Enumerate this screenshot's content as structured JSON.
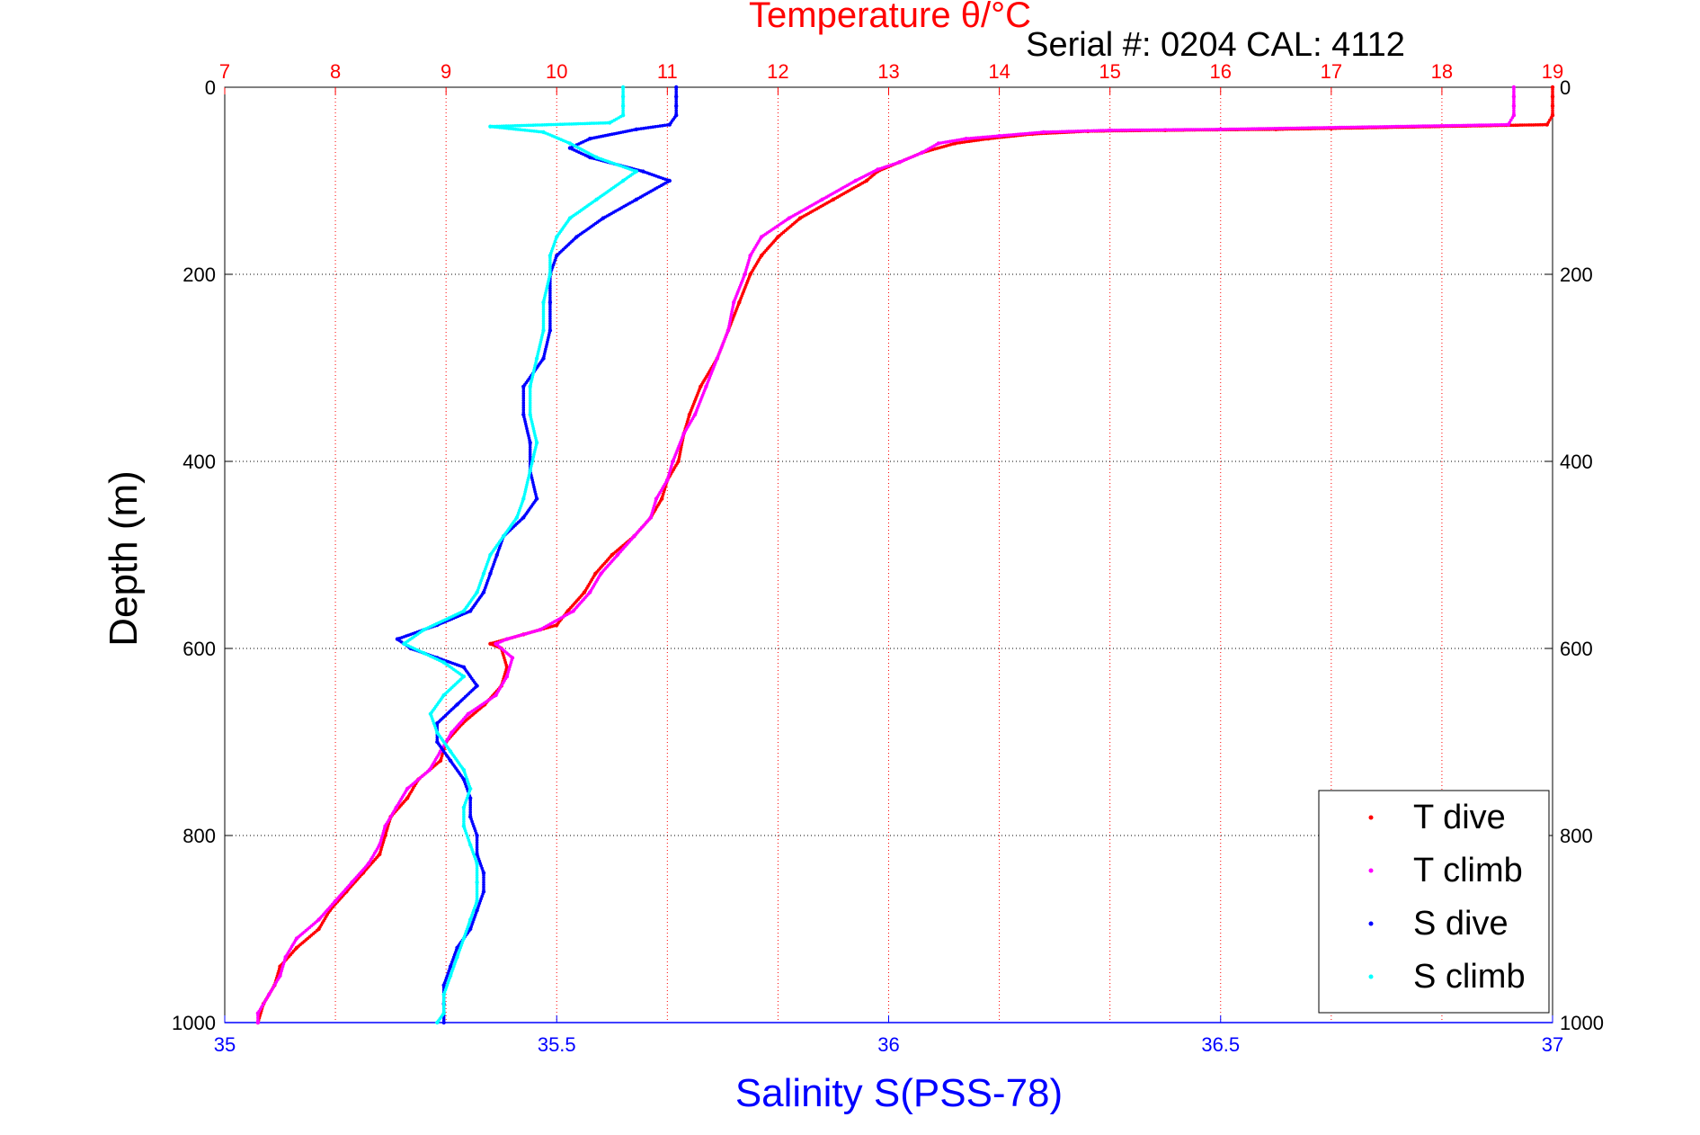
{
  "chart_data": {
    "type": "scatter",
    "serial_text": "Serial #: 0204  CAL: 4112",
    "axes": {
      "temperature": {
        "label": "Temperature θ/°C",
        "range": [
          7,
          19
        ],
        "ticks": [
          "7",
          "8",
          "9",
          "10",
          "11",
          "12",
          "13",
          "14",
          "15",
          "16",
          "17",
          "18",
          "19"
        ],
        "color": "#ff0000",
        "position": "top"
      },
      "salinity": {
        "label": "Salinity S(PSS-78)",
        "range": [
          35,
          37
        ],
        "ticks": [
          "35",
          "35.5",
          "36",
          "36.5",
          "37"
        ],
        "color": "#0000ff",
        "position": "bottom"
      },
      "depth": {
        "label": "Depth (m)",
        "range": [
          0,
          1000
        ],
        "ticks": [
          "0",
          "200",
          "400",
          "600",
          "800",
          "1000"
        ],
        "inverted": true
      }
    },
    "grid": true,
    "legend": {
      "placement": "bottom-right",
      "entries": [
        "T dive",
        "T climb",
        "S dive",
        "S climb"
      ]
    },
    "series": [
      {
        "name": "T dive",
        "axis": "temperature",
        "color": "#ff0000",
        "points": [
          [
            19.0,
            0
          ],
          [
            19.0,
            10
          ],
          [
            19.0,
            20
          ],
          [
            19.0,
            30
          ],
          [
            18.95,
            40
          ],
          [
            17.0,
            44
          ],
          [
            16.5,
            45
          ],
          [
            15.5,
            46
          ],
          [
            14.8,
            47
          ],
          [
            14.3,
            50
          ],
          [
            13.9,
            55
          ],
          [
            13.6,
            60
          ],
          [
            13.3,
            70
          ],
          [
            13.1,
            80
          ],
          [
            12.9,
            90
          ],
          [
            12.8,
            100
          ],
          [
            12.5,
            120
          ],
          [
            12.2,
            140
          ],
          [
            12.0,
            160
          ],
          [
            11.85,
            180
          ],
          [
            11.75,
            200
          ],
          [
            11.65,
            230
          ],
          [
            11.55,
            260
          ],
          [
            11.45,
            290
          ],
          [
            11.3,
            320
          ],
          [
            11.2,
            350
          ],
          [
            11.15,
            370
          ],
          [
            11.1,
            400
          ],
          [
            11.0,
            420
          ],
          [
            10.95,
            440
          ],
          [
            10.85,
            460
          ],
          [
            10.7,
            480
          ],
          [
            10.5,
            500
          ],
          [
            10.35,
            520
          ],
          [
            10.25,
            540
          ],
          [
            10.1,
            560
          ],
          [
            10.0,
            575
          ],
          [
            9.7,
            585
          ],
          [
            9.4,
            595
          ],
          [
            9.5,
            600
          ],
          [
            9.55,
            620
          ],
          [
            9.5,
            640
          ],
          [
            9.35,
            660
          ],
          [
            9.15,
            680
          ],
          [
            9.0,
            700
          ],
          [
            8.95,
            720
          ],
          [
            8.75,
            740
          ],
          [
            8.65,
            760
          ],
          [
            8.5,
            780
          ],
          [
            8.45,
            800
          ],
          [
            8.4,
            820
          ],
          [
            8.25,
            840
          ],
          [
            8.1,
            860
          ],
          [
            7.95,
            880
          ],
          [
            7.85,
            900
          ],
          [
            7.65,
            920
          ],
          [
            7.5,
            940
          ],
          [
            7.45,
            960
          ],
          [
            7.35,
            980
          ],
          [
            7.3,
            1000
          ]
        ]
      },
      {
        "name": "T climb",
        "axis": "temperature",
        "color": "#ff00ff",
        "points": [
          [
            18.65,
            0
          ],
          [
            18.65,
            10
          ],
          [
            18.65,
            20
          ],
          [
            18.65,
            30
          ],
          [
            18.6,
            40
          ],
          [
            16.0,
            45
          ],
          [
            15.0,
            46
          ],
          [
            14.4,
            48
          ],
          [
            14.0,
            52
          ],
          [
            13.7,
            55
          ],
          [
            13.45,
            60
          ],
          [
            13.3,
            70
          ],
          [
            13.1,
            80
          ],
          [
            12.9,
            88
          ],
          [
            12.7,
            100
          ],
          [
            12.4,
            120
          ],
          [
            12.1,
            140
          ],
          [
            11.85,
            160
          ],
          [
            11.75,
            180
          ],
          [
            11.7,
            200
          ],
          [
            11.6,
            230
          ],
          [
            11.55,
            260
          ],
          [
            11.45,
            290
          ],
          [
            11.35,
            320
          ],
          [
            11.25,
            350
          ],
          [
            11.15,
            370
          ],
          [
            11.05,
            400
          ],
          [
            11.0,
            420
          ],
          [
            10.9,
            440
          ],
          [
            10.85,
            460
          ],
          [
            10.7,
            480
          ],
          [
            10.55,
            500
          ],
          [
            10.4,
            520
          ],
          [
            10.3,
            540
          ],
          [
            10.15,
            560
          ],
          [
            9.85,
            580
          ],
          [
            9.55,
            590
          ],
          [
            9.45,
            595
          ],
          [
            9.6,
            610
          ],
          [
            9.55,
            630
          ],
          [
            9.45,
            650
          ],
          [
            9.2,
            670
          ],
          [
            9.05,
            690
          ],
          [
            8.95,
            710
          ],
          [
            8.85,
            730
          ],
          [
            8.65,
            750
          ],
          [
            8.55,
            770
          ],
          [
            8.45,
            790
          ],
          [
            8.4,
            810
          ],
          [
            8.3,
            830
          ],
          [
            8.15,
            850
          ],
          [
            8.0,
            870
          ],
          [
            7.85,
            890
          ],
          [
            7.65,
            910
          ],
          [
            7.55,
            930
          ],
          [
            7.5,
            950
          ],
          [
            7.4,
            970
          ],
          [
            7.3,
            990
          ],
          [
            7.3,
            1000
          ]
        ]
      },
      {
        "name": "S dive",
        "axis": "salinity",
        "color": "#0000ff",
        "points": [
          [
            35.68,
            0
          ],
          [
            35.68,
            10
          ],
          [
            35.68,
            20
          ],
          [
            35.68,
            30
          ],
          [
            35.67,
            40
          ],
          [
            35.62,
            45
          ],
          [
            35.55,
            55
          ],
          [
            35.52,
            65
          ],
          [
            35.55,
            75
          ],
          [
            35.63,
            90
          ],
          [
            35.67,
            100
          ],
          [
            35.62,
            120
          ],
          [
            35.57,
            140
          ],
          [
            35.53,
            160
          ],
          [
            35.5,
            180
          ],
          [
            35.49,
            200
          ],
          [
            35.49,
            230
          ],
          [
            35.49,
            260
          ],
          [
            35.48,
            290
          ],
          [
            35.45,
            320
          ],
          [
            35.45,
            350
          ],
          [
            35.46,
            380
          ],
          [
            35.46,
            410
          ],
          [
            35.47,
            440
          ],
          [
            35.45,
            460
          ],
          [
            35.42,
            480
          ],
          [
            35.41,
            500
          ],
          [
            35.4,
            520
          ],
          [
            35.39,
            540
          ],
          [
            35.37,
            560
          ],
          [
            35.32,
            575
          ],
          [
            35.26,
            590
          ],
          [
            35.28,
            600
          ],
          [
            35.32,
            610
          ],
          [
            35.36,
            620
          ],
          [
            35.38,
            640
          ],
          [
            35.35,
            660
          ],
          [
            35.32,
            680
          ],
          [
            35.32,
            700
          ],
          [
            35.34,
            720
          ],
          [
            35.36,
            740
          ],
          [
            35.37,
            760
          ],
          [
            35.37,
            780
          ],
          [
            35.38,
            800
          ],
          [
            35.38,
            820
          ],
          [
            35.39,
            840
          ],
          [
            35.39,
            860
          ],
          [
            35.38,
            880
          ],
          [
            35.37,
            900
          ],
          [
            35.35,
            920
          ],
          [
            35.34,
            940
          ],
          [
            35.33,
            960
          ],
          [
            35.33,
            980
          ],
          [
            35.33,
            1000
          ]
        ]
      },
      {
        "name": "S climb",
        "axis": "salinity",
        "color": "#00ffff",
        "points": [
          [
            35.6,
            0
          ],
          [
            35.6,
            10
          ],
          [
            35.6,
            20
          ],
          [
            35.6,
            30
          ],
          [
            35.58,
            38
          ],
          [
            35.4,
            42
          ],
          [
            35.48,
            48
          ],
          [
            35.52,
            60
          ],
          [
            35.56,
            75
          ],
          [
            35.62,
            90
          ],
          [
            35.6,
            100
          ],
          [
            35.56,
            120
          ],
          [
            35.52,
            140
          ],
          [
            35.5,
            160
          ],
          [
            35.49,
            180
          ],
          [
            35.49,
            200
          ],
          [
            35.48,
            230
          ],
          [
            35.48,
            260
          ],
          [
            35.47,
            290
          ],
          [
            35.46,
            320
          ],
          [
            35.46,
            350
          ],
          [
            35.47,
            380
          ],
          [
            35.46,
            410
          ],
          [
            35.45,
            440
          ],
          [
            35.44,
            460
          ],
          [
            35.42,
            480
          ],
          [
            35.4,
            500
          ],
          [
            35.39,
            520
          ],
          [
            35.38,
            540
          ],
          [
            35.36,
            560
          ],
          [
            35.3,
            580
          ],
          [
            35.27,
            595
          ],
          [
            35.3,
            605
          ],
          [
            35.33,
            615
          ],
          [
            35.36,
            630
          ],
          [
            35.33,
            650
          ],
          [
            35.31,
            670
          ],
          [
            35.32,
            690
          ],
          [
            35.34,
            710
          ],
          [
            35.36,
            730
          ],
          [
            35.37,
            750
          ],
          [
            35.36,
            770
          ],
          [
            35.36,
            790
          ],
          [
            35.37,
            810
          ],
          [
            35.38,
            830
          ],
          [
            35.38,
            850
          ],
          [
            35.38,
            870
          ],
          [
            35.37,
            890
          ],
          [
            35.36,
            910
          ],
          [
            35.35,
            930
          ],
          [
            35.34,
            950
          ],
          [
            35.33,
            970
          ],
          [
            35.33,
            990
          ],
          [
            35.32,
            1000
          ]
        ]
      }
    ]
  }
}
